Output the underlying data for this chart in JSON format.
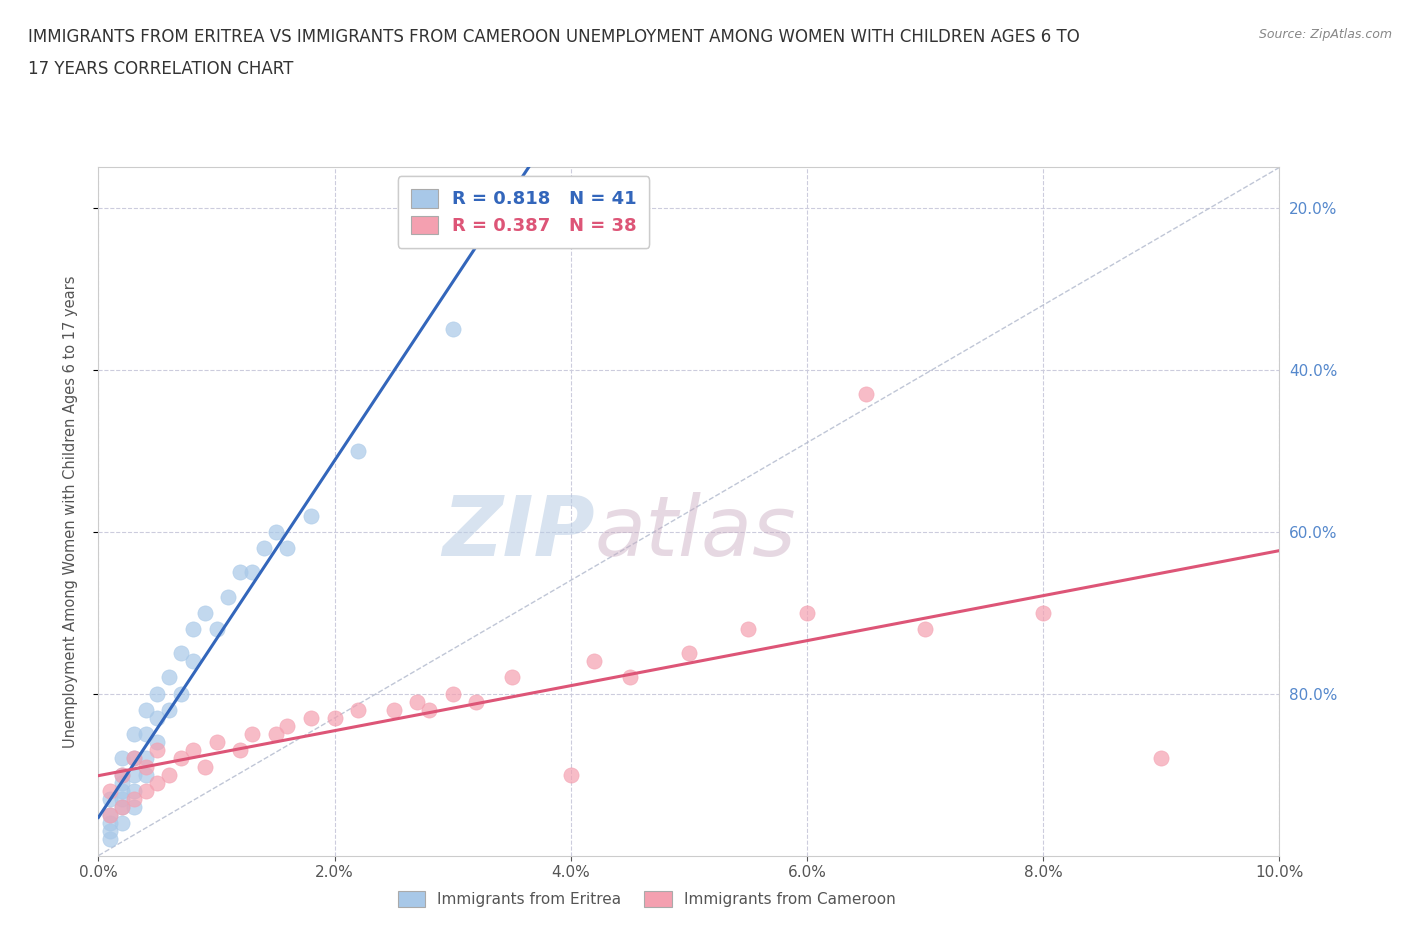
{
  "title_line1": "IMMIGRANTS FROM ERITREA VS IMMIGRANTS FROM CAMEROON UNEMPLOYMENT AMONG WOMEN WITH CHILDREN AGES 6 TO",
  "title_line2": "17 YEARS CORRELATION CHART",
  "source": "Source: ZipAtlas.com",
  "ylabel": "Unemployment Among Women with Children Ages 6 to 17 years",
  "xlim": [
    0.0,
    0.1
  ],
  "ylim": [
    0.0,
    0.85
  ],
  "xticks": [
    0.0,
    0.02,
    0.04,
    0.06,
    0.08,
    0.1
  ],
  "yticks": [
    0.2,
    0.4,
    0.6,
    0.8
  ],
  "xticklabels": [
    "0.0%",
    "2.0%",
    "4.0%",
    "6.0%",
    "8.0%",
    "10.0%"
  ],
  "right_yticklabels": [
    "80.0%",
    "60.0%",
    "40.0%",
    "20.0%"
  ],
  "eritrea_R": 0.818,
  "eritrea_N": 41,
  "cameroon_R": 0.387,
  "cameroon_N": 38,
  "eritrea_color": "#a8c8e8",
  "cameroon_color": "#f4a0b0",
  "eritrea_line_color": "#3366bb",
  "cameroon_line_color": "#dd5577",
  "diagonal_color": "#b0b8cc",
  "background_color": "#ffffff",
  "grid_color": "#ccccdd",
  "watermark_zip": "ZIP",
  "watermark_atlas": "atlas",
  "eritrea_x": [
    0.001,
    0.001,
    0.001,
    0.001,
    0.001,
    0.002,
    0.002,
    0.002,
    0.002,
    0.002,
    0.002,
    0.002,
    0.003,
    0.003,
    0.003,
    0.003,
    0.003,
    0.004,
    0.004,
    0.004,
    0.004,
    0.005,
    0.005,
    0.005,
    0.006,
    0.006,
    0.007,
    0.007,
    0.008,
    0.008,
    0.009,
    0.01,
    0.011,
    0.012,
    0.013,
    0.014,
    0.015,
    0.016,
    0.018,
    0.022,
    0.03
  ],
  "eritrea_y": [
    0.02,
    0.03,
    0.04,
    0.05,
    0.07,
    0.04,
    0.06,
    0.07,
    0.08,
    0.09,
    0.1,
    0.12,
    0.06,
    0.08,
    0.1,
    0.12,
    0.15,
    0.1,
    0.12,
    0.15,
    0.18,
    0.14,
    0.17,
    0.2,
    0.18,
    0.22,
    0.2,
    0.25,
    0.24,
    0.28,
    0.3,
    0.28,
    0.32,
    0.35,
    0.35,
    0.38,
    0.4,
    0.38,
    0.42,
    0.5,
    0.65
  ],
  "cameroon_x": [
    0.001,
    0.001,
    0.002,
    0.002,
    0.003,
    0.003,
    0.004,
    0.004,
    0.005,
    0.005,
    0.006,
    0.007,
    0.008,
    0.009,
    0.01,
    0.012,
    0.013,
    0.015,
    0.016,
    0.018,
    0.02,
    0.022,
    0.025,
    0.027,
    0.028,
    0.03,
    0.032,
    0.035,
    0.04,
    0.042,
    0.045,
    0.05,
    0.055,
    0.06,
    0.065,
    0.07,
    0.08,
    0.09
  ],
  "cameroon_y": [
    0.05,
    0.08,
    0.06,
    0.1,
    0.07,
    0.12,
    0.08,
    0.11,
    0.09,
    0.13,
    0.1,
    0.12,
    0.13,
    0.11,
    0.14,
    0.13,
    0.15,
    0.15,
    0.16,
    0.17,
    0.17,
    0.18,
    0.18,
    0.19,
    0.18,
    0.2,
    0.19,
    0.22,
    0.1,
    0.24,
    0.22,
    0.25,
    0.28,
    0.3,
    0.57,
    0.28,
    0.3,
    0.12
  ]
}
